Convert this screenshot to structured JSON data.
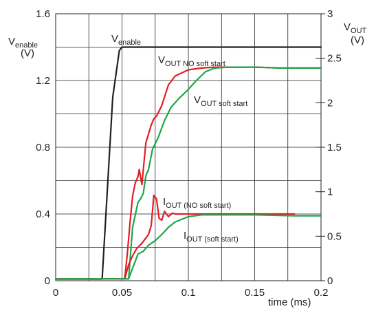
{
  "chart_data": {
    "type": "line",
    "title": "",
    "xlabel": "time (ms)",
    "x_ticks": [
      "0",
      "0.05",
      "0.1",
      "0.15",
      "0.2"
    ],
    "xlim": [
      0,
      0.2
    ],
    "left_axis": {
      "label_main": "V",
      "label_sub": "enable",
      "label_unit": "(V)",
      "ylim": [
        0,
        1.6
      ],
      "ticks": [
        "0",
        "0.4",
        "0.8",
        "1.2",
        "1.6"
      ]
    },
    "right_axis": {
      "label_main": "V",
      "label_sub": "OUT",
      "label_unit": "(V)",
      "ylim": [
        0,
        3
      ],
      "ticks": [
        "0",
        "0.5",
        "1",
        "1.5",
        "2",
        "2.5",
        "3"
      ]
    },
    "grid": true,
    "annotations": {
      "venable": {
        "main": "V",
        "sub": "enable"
      },
      "vout_no_ss": {
        "main": "V",
        "sub": "OUT NO soft start"
      },
      "vout_ss": {
        "main": "V",
        "sub": "OUT soft start"
      },
      "iout_no_ss": {
        "main": "I",
        "sub": "OUT (NO soft start)"
      },
      "iout_ss": {
        "main": "I",
        "sub": "OUT (soft start)"
      }
    },
    "series": [
      {
        "axis": "left",
        "color": "#231f20",
        "x": [
          0,
          0.035,
          0.043,
          0.048,
          0.05,
          0.2
        ],
        "y": [
          0.01,
          0.01,
          1.1,
          1.38,
          1.4,
          1.4
        ]
      },
      {
        "axis": "right",
        "color": "#e31e24",
        "x": [
          0,
          0.052,
          0.054,
          0.056,
          0.058,
          0.06,
          0.062,
          0.063,
          0.065,
          0.068,
          0.072,
          0.074,
          0.076,
          0.08,
          0.085,
          0.09,
          0.1,
          0.11,
          0.12,
          0.13,
          0.15,
          0.17,
          0.2
        ],
        "y": [
          0.02,
          0.02,
          0.3,
          0.65,
          0.95,
          1.1,
          1.17,
          1.25,
          1.08,
          1.55,
          1.75,
          1.82,
          1.85,
          1.97,
          2.2,
          2.3,
          2.37,
          2.39,
          2.4,
          2.4,
          2.4,
          2.39,
          2.39
        ]
      },
      {
        "axis": "right",
        "color": "#1ba64a",
        "x": [
          0,
          0.055,
          0.058,
          0.062,
          0.064,
          0.066,
          0.068,
          0.07,
          0.073,
          0.077,
          0.082,
          0.087,
          0.093,
          0.1,
          0.106,
          0.113,
          0.12,
          0.13,
          0.15,
          0.17,
          0.2
        ],
        "y": [
          0.02,
          0.02,
          0.6,
          0.88,
          0.92,
          0.98,
          1.18,
          1.25,
          1.48,
          1.6,
          1.8,
          1.95,
          2.05,
          2.15,
          2.25,
          2.35,
          2.39,
          2.4,
          2.4,
          2.39,
          2.39
        ]
      },
      {
        "axis": "right",
        "color": "#e31e24",
        "x": [
          0,
          0.052,
          0.055,
          0.058,
          0.061,
          0.065,
          0.07,
          0.072,
          0.074,
          0.076,
          0.078,
          0.08,
          0.082,
          0.085,
          0.088,
          0.09,
          0.095,
          0.1,
          0.12,
          0.15,
          0.18
        ],
        "y": [
          0.02,
          0.02,
          0.18,
          0.28,
          0.36,
          0.42,
          0.52,
          0.62,
          0.96,
          0.92,
          0.7,
          0.68,
          0.78,
          0.72,
          0.76,
          0.75,
          0.75,
          0.75,
          0.75,
          0.75,
          0.75
        ]
      },
      {
        "axis": "right",
        "color": "#1ba64a",
        "x": [
          0,
          0.055,
          0.058,
          0.062,
          0.066,
          0.07,
          0.075,
          0.08,
          0.085,
          0.09,
          0.1,
          0.11,
          0.12,
          0.15,
          0.18,
          0.2
        ],
        "y": [
          0.02,
          0.02,
          0.14,
          0.3,
          0.33,
          0.4,
          0.45,
          0.52,
          0.6,
          0.66,
          0.72,
          0.74,
          0.74,
          0.74,
          0.73,
          0.73
        ]
      }
    ]
  }
}
